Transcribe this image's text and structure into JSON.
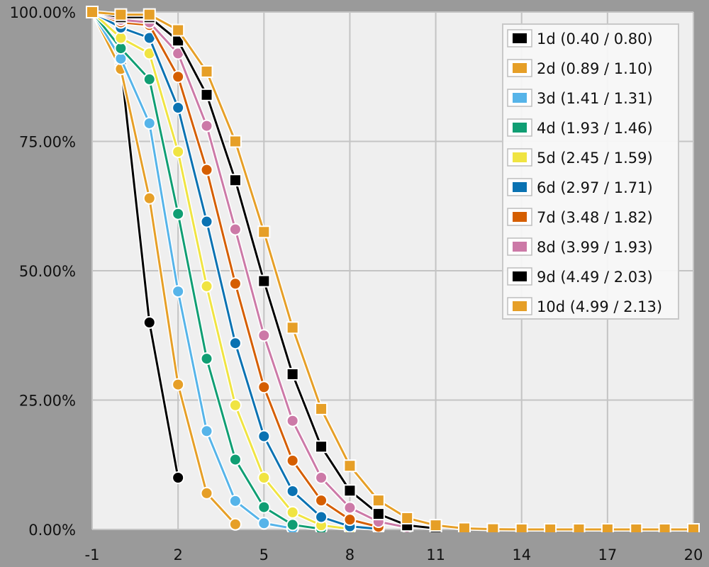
{
  "chart_data": {
    "type": "line",
    "title": "",
    "xlabel": "",
    "ylabel": "",
    "xlim": [
      -1,
      20
    ],
    "ylim": [
      0,
      100
    ],
    "x_ticks": [
      -1,
      2,
      5,
      8,
      11,
      14,
      17,
      20
    ],
    "x_tick_labels": [
      "-1",
      "2",
      "5",
      "8",
      "11",
      "14",
      "17",
      "20"
    ],
    "y_ticks": [
      0,
      25,
      50,
      75,
      100
    ],
    "y_tick_labels": [
      "0.00%",
      "25.00%",
      "50.00%",
      "75.00%",
      "100.00%"
    ],
    "grid": true,
    "legend_position": "top-right",
    "series": [
      {
        "name": "1d (0.40 / 0.80)",
        "color": "#000000",
        "marker": "circle",
        "x": [
          -1,
          0,
          1,
          2
        ],
        "y": [
          100,
          90,
          40,
          10
        ]
      },
      {
        "name": "2d (0.89 / 1.10)",
        "color": "#e69f27",
        "marker": "circle",
        "x": [
          -1,
          0,
          1,
          2,
          3,
          4
        ],
        "y": [
          100,
          89,
          64,
          28,
          7,
          1
        ]
      },
      {
        "name": "3d (1.41 / 1.31)",
        "color": "#56b4e9",
        "marker": "circle",
        "x": [
          -1,
          0,
          1,
          2,
          3,
          4,
          5,
          6
        ],
        "y": [
          100,
          91,
          78.5,
          46,
          19,
          5.5,
          1.2,
          0.2
        ]
      },
      {
        "name": "4d (1.93 / 1.46)",
        "color": "#109e73",
        "marker": "circle",
        "x": [
          -1,
          0,
          1,
          2,
          3,
          4,
          5,
          6,
          7
        ],
        "y": [
          100,
          93,
          87,
          61,
          33,
          13.5,
          4.3,
          0.9,
          0.1
        ]
      },
      {
        "name": "5d (2.45 / 1.59)",
        "color": "#f0e442",
        "marker": "circle",
        "x": [
          -1,
          0,
          1,
          2,
          3,
          4,
          5,
          6,
          7,
          8
        ],
        "y": [
          100,
          95,
          92,
          73,
          47,
          24,
          10,
          3.3,
          0.8,
          0.1
        ]
      },
      {
        "name": "6d (2.97 / 1.71)",
        "color": "#0a72b2",
        "marker": "circle",
        "x": [
          -1,
          0,
          1,
          2,
          3,
          4,
          5,
          6,
          7,
          8,
          9
        ],
        "y": [
          100,
          97,
          95,
          81.5,
          59.5,
          36,
          18,
          7.4,
          2.4,
          0.6,
          0.1
        ]
      },
      {
        "name": "7d (3.48 / 1.82)",
        "color": "#d55e00",
        "marker": "circle",
        "x": [
          -1,
          0,
          1,
          2,
          3,
          4,
          5,
          6,
          7,
          8,
          9
        ],
        "y": [
          100,
          98,
          97.5,
          87.5,
          69.5,
          47.5,
          27.5,
          13.3,
          5.6,
          1.9,
          0.5
        ]
      },
      {
        "name": "8d (3.99 / 1.93)",
        "color": "#cc79a7",
        "marker": "circle",
        "x": [
          -1,
          0,
          1,
          2,
          3,
          4,
          5,
          6,
          7,
          8,
          9,
          10
        ],
        "y": [
          100,
          98.5,
          98,
          92,
          78,
          58,
          37.5,
          21,
          10,
          4.2,
          1.5,
          0.4
        ]
      },
      {
        "name": "9d (4.49 / 2.03)",
        "color": "#000000",
        "marker": "square",
        "x": [
          -1,
          0,
          1,
          2,
          3,
          4,
          5,
          6,
          7,
          8,
          9,
          10,
          11
        ],
        "y": [
          100,
          99,
          99,
          94.5,
          84,
          67.5,
          48,
          30,
          16,
          7.5,
          3,
          0.8,
          0.2
        ]
      },
      {
        "name": "10d (4.99 / 2.13)",
        "color": "#e69f27",
        "marker": "square",
        "x": [
          -1,
          0,
          1,
          2,
          3,
          4,
          5,
          6,
          7,
          8,
          9,
          10,
          11,
          12,
          13,
          14,
          15,
          16,
          17,
          18,
          19,
          20
        ],
        "y": [
          100,
          99.5,
          99.5,
          96.5,
          88.5,
          75,
          57.5,
          39,
          23.3,
          12.3,
          5.6,
          2.2,
          0.8,
          0.2,
          0.05,
          0,
          0,
          0,
          0,
          0,
          0,
          0
        ]
      }
    ]
  }
}
